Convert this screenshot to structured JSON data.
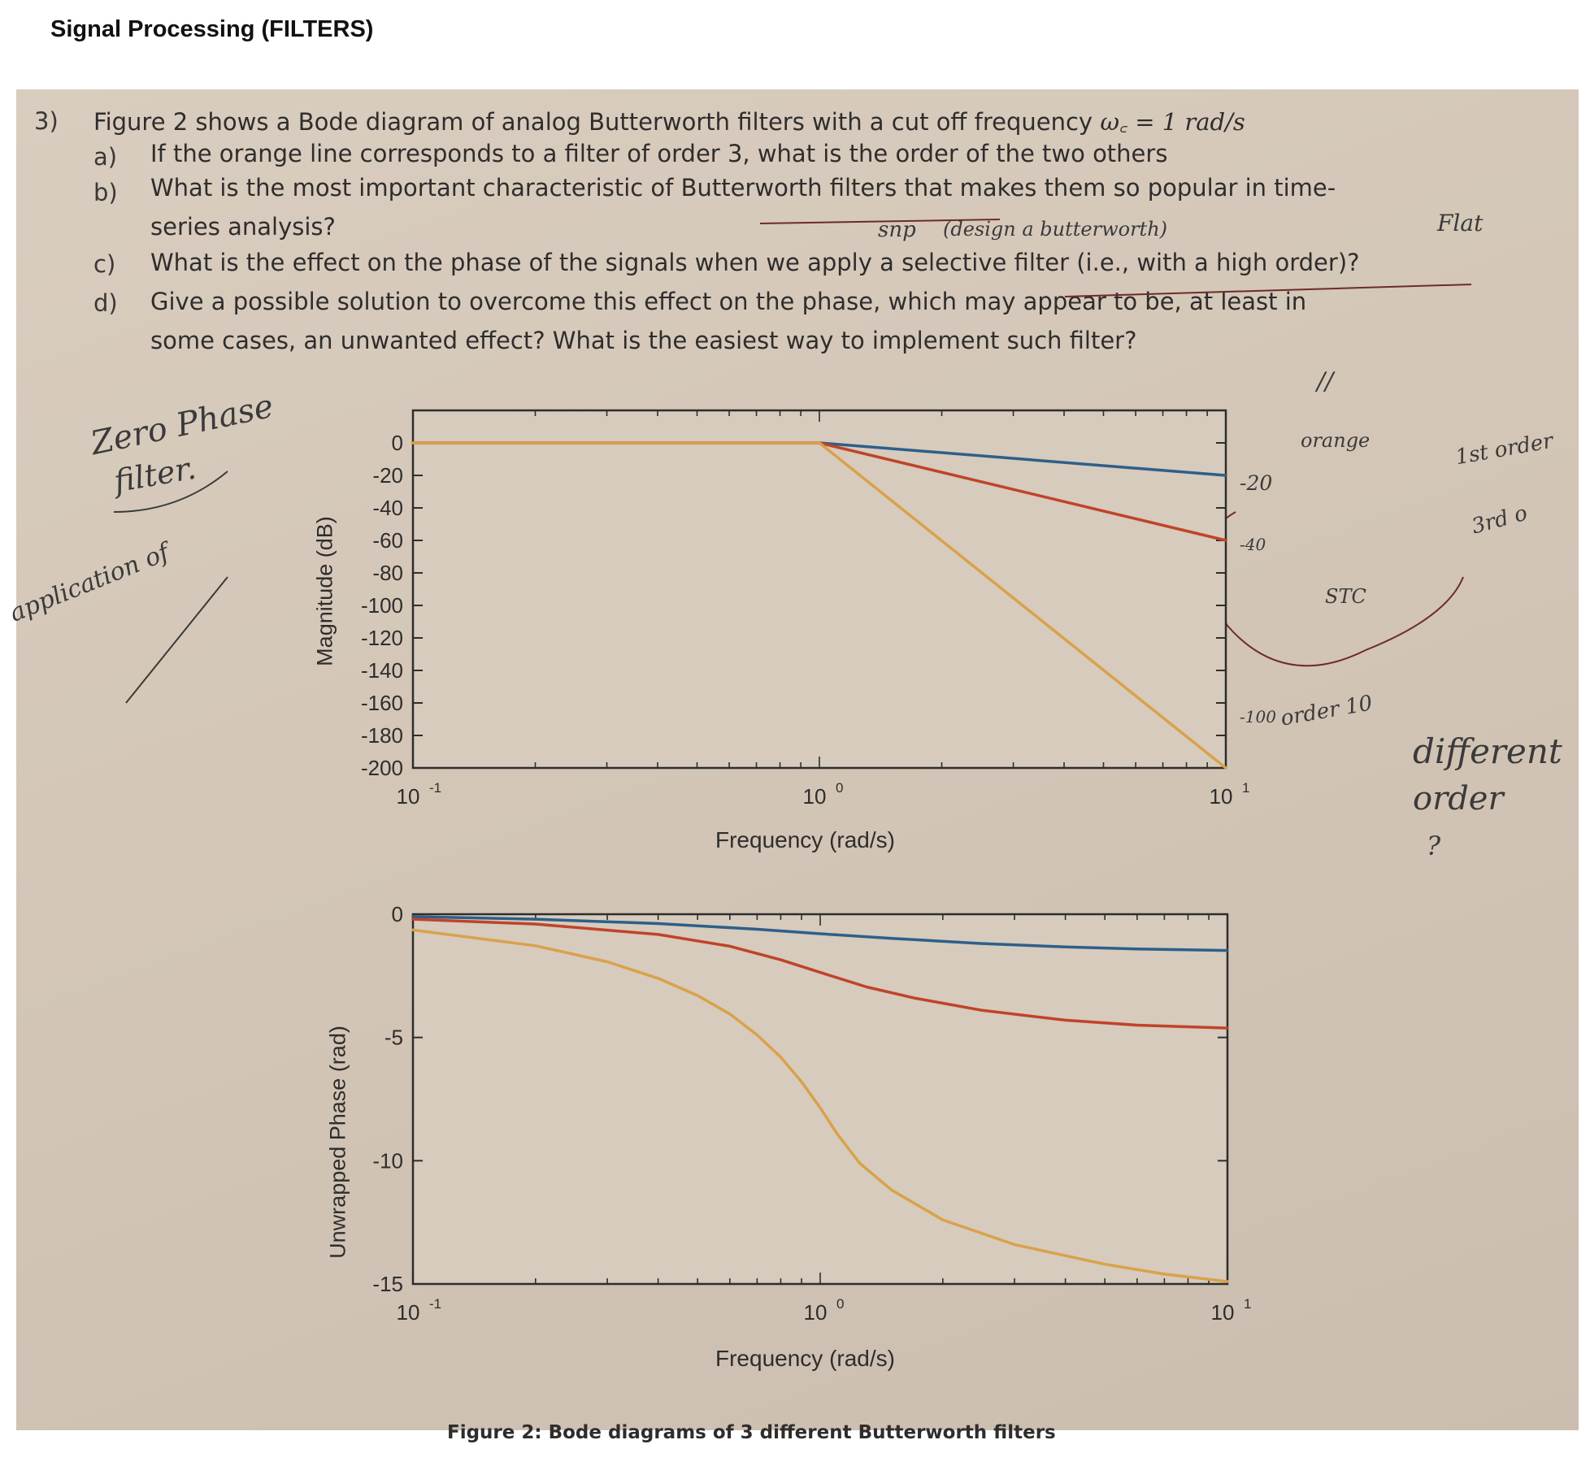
{
  "page_title": "Signal Processing (FILTERS)",
  "question": {
    "number": "3)",
    "intro": "Figure 2 shows a Bode diagram of analog Butterworth filters with a cut off frequency ",
    "intro_math": "ω꜀ = 1 rad/s",
    "items": [
      {
        "label": "a)",
        "text": "If the orange line corresponds to a filter of order 3, what is the order of the two others"
      },
      {
        "label": "b)",
        "text": "What is the most important characteristic of Butterworth filters that makes them so popular in time-"
      },
      {
        "label": "",
        "text": "series analysis?"
      },
      {
        "label": "c)",
        "text": "What is the effect on the phase of the signals when we apply a selective filter (i.e., with a high order)?"
      },
      {
        "label": "d)",
        "text": "Give a possible solution to overcome this effect on the phase, which may appear to be, at least in"
      },
      {
        "label": "",
        "text": "some cases, an unwanted effect? What is the easiest way to implement such filter?"
      }
    ]
  },
  "handwritten": {
    "zero_phase": "Zero Phase",
    "filter": "filter.",
    "application": "application of",
    "order_annotation": "order 10",
    "first_order": "1st order",
    "third_order": "3rd o",
    "different": "different",
    "order": "order",
    "question_mark": "?",
    "orange": "orange",
    "minus20": "-20",
    "minus40": "-40",
    "minus100": "-100",
    "stc": "STC",
    "flat": "Flat",
    "design_note": "(design a butterworth)",
    "note_snap": "snp",
    "note_slash": "//"
  },
  "figure_caption": "Figure 2: Bode diagrams of 3 different Butterworth filters",
  "chart_data": [
    {
      "type": "line",
      "title": "",
      "xlabel": "Frequency (rad/s)",
      "ylabel": "Magnitude (dB)",
      "xscale": "log",
      "xlim": [
        0.1,
        10
      ],
      "ylim": [
        -200,
        20
      ],
      "xticks": [
        0.1,
        1,
        10
      ],
      "xtick_labels": [
        [
          "10",
          "-1"
        ],
        [
          "10",
          "0"
        ],
        [
          "10",
          "1"
        ]
      ],
      "yticks": [
        0,
        -20,
        -40,
        -60,
        -80,
        -100,
        -120,
        -140,
        -160,
        -180,
        -200
      ],
      "grid": false,
      "series": [
        {
          "color": "#2e5f8a",
          "order": 1,
          "x": [
            0.1,
            1,
            10
          ],
          "y": [
            0,
            0,
            -20
          ]
        },
        {
          "color": "#c0432a",
          "order": 3,
          "x": [
            0.1,
            1,
            10
          ],
          "y": [
            0,
            0,
            -60
          ]
        },
        {
          "color": "#d9a24a",
          "order": 10,
          "x": [
            0.1,
            1,
            10
          ],
          "y": [
            0,
            0,
            -200
          ]
        }
      ]
    },
    {
      "type": "line",
      "title": "",
      "xlabel": "Frequency (rad/s)",
      "ylabel": "Unwrapped Phase (rad)",
      "xscale": "log",
      "xlim": [
        0.1,
        10
      ],
      "ylim": [
        -15,
        0
      ],
      "xticks": [
        0.1,
        1,
        10
      ],
      "xtick_labels": [
        [
          "10",
          "-1"
        ],
        [
          "10",
          "0"
        ],
        [
          "10",
          "1"
        ]
      ],
      "yticks": [
        0,
        -5,
        -10,
        -15
      ],
      "grid": false,
      "series": [
        {
          "color": "#2e5f8a",
          "order": 1,
          "x": [
            0.1,
            0.2,
            0.4,
            0.7,
            1,
            1.5,
            2.5,
            4,
            6,
            10
          ],
          "y": [
            -0.1,
            -0.2,
            -0.38,
            -0.61,
            -0.79,
            -0.98,
            -1.19,
            -1.33,
            -1.41,
            -1.47
          ]
        },
        {
          "color": "#c0432a",
          "order": 3,
          "x": [
            0.1,
            0.2,
            0.4,
            0.6,
            0.8,
            1,
            1.3,
            1.7,
            2.5,
            4,
            6,
            10
          ],
          "y": [
            -0.2,
            -0.4,
            -0.82,
            -1.3,
            -1.85,
            -2.36,
            -2.95,
            -3.4,
            -3.9,
            -4.3,
            -4.5,
            -4.62
          ]
        },
        {
          "color": "#d9a24a",
          "order": 10,
          "x": [
            0.1,
            0.2,
            0.3,
            0.4,
            0.5,
            0.6,
            0.7,
            0.8,
            0.9,
            1,
            1.1,
            1.25,
            1.5,
            2,
            3,
            5,
            7,
            10
          ],
          "y": [
            -0.64,
            -1.28,
            -1.93,
            -2.6,
            -3.3,
            -4.05,
            -4.9,
            -5.8,
            -6.8,
            -7.85,
            -8.9,
            -10.1,
            -11.2,
            -12.4,
            -13.4,
            -14.2,
            -14.6,
            -14.9
          ]
        }
      ]
    }
  ]
}
